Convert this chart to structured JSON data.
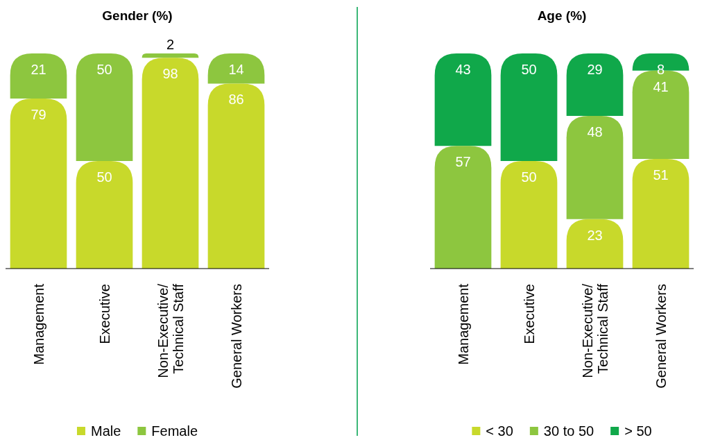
{
  "chart_data": [
    {
      "type": "bar",
      "title": "Gender (%)",
      "categories": [
        "Management",
        "Executive",
        "Non-Executive/ Technical Staff",
        "General Workers"
      ],
      "stacked": true,
      "data_labels": true,
      "ylim": [
        0,
        100
      ],
      "tick_labels": "x",
      "legend": "bottom",
      "series": [
        {
          "name": "Male",
          "color": "#c8d92b",
          "values": [
            79,
            50,
            98,
            86
          ]
        },
        {
          "name": "Female",
          "color": "#8dc63f",
          "values": [
            21,
            50,
            2,
            14
          ]
        }
      ]
    },
    {
      "type": "bar",
      "title": "Age (%)",
      "categories": [
        "Management",
        "Executive",
        "Non-Executive/ Technical Staff",
        "General Workers"
      ],
      "stacked": true,
      "data_labels": true,
      "ylim": [
        0,
        100
      ],
      "tick_labels": "x",
      "legend": "bottom",
      "series": [
        {
          "name": "< 30",
          "color": "#c8d92b",
          "values": [
            null,
            50,
            23,
            51
          ]
        },
        {
          "name": "30 to 50",
          "color": "#8dc63f",
          "values": [
            57,
            null,
            48,
            41
          ]
        },
        {
          "name": "> 50",
          "color": "#10a84a",
          "values": [
            43,
            50,
            29,
            8
          ]
        }
      ]
    }
  ]
}
